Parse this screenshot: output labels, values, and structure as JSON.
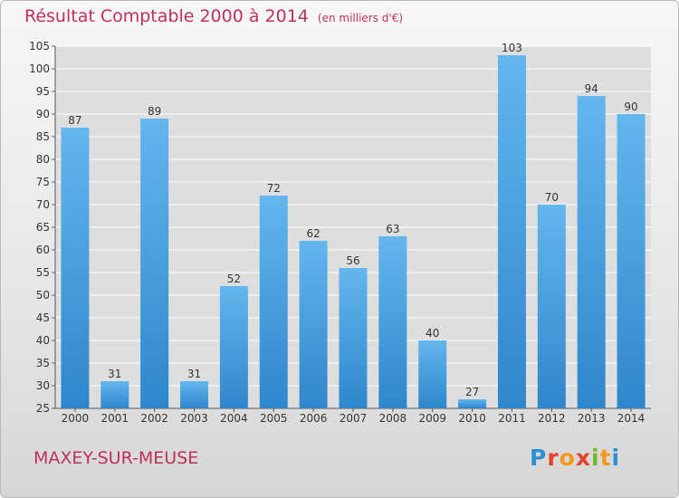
{
  "header": {
    "title": "Résultat Comptable 2000 à 2014",
    "unit_note": "(en milliers d'€)"
  },
  "commune": "MAXEY-SUR-MEUSE",
  "logo": {
    "text": "Proxiti",
    "letter_colors": [
      "#2f8fd6",
      "#e8402a",
      "#f39a1d",
      "#e8402a",
      "#76b82a",
      "#f39a1d",
      "#2f8fd6"
    ]
  },
  "colors": {
    "title": "#c0305a",
    "bar_light": "#63b6ee",
    "bar_dark": "#2f86cb"
  },
  "chart_data": {
    "type": "bar",
    "title": "Résultat Comptable 2000 à 2014",
    "subtitle": "(en milliers d'€)",
    "xlabel": "",
    "ylabel": "",
    "categories": [
      "2000",
      "2001",
      "2002",
      "2003",
      "2004",
      "2005",
      "2006",
      "2007",
      "2008",
      "2009",
      "2010",
      "2011",
      "2012",
      "2013",
      "2014"
    ],
    "values": [
      87,
      31,
      89,
      31,
      52,
      72,
      62,
      56,
      63,
      40,
      27,
      103,
      70,
      94,
      90
    ],
    "ylim": [
      25,
      105
    ],
    "yticks": [
      25,
      30,
      35,
      40,
      45,
      50,
      55,
      60,
      65,
      70,
      75,
      80,
      85,
      90,
      95,
      100,
      105
    ],
    "grid": true,
    "data_labels": true
  }
}
